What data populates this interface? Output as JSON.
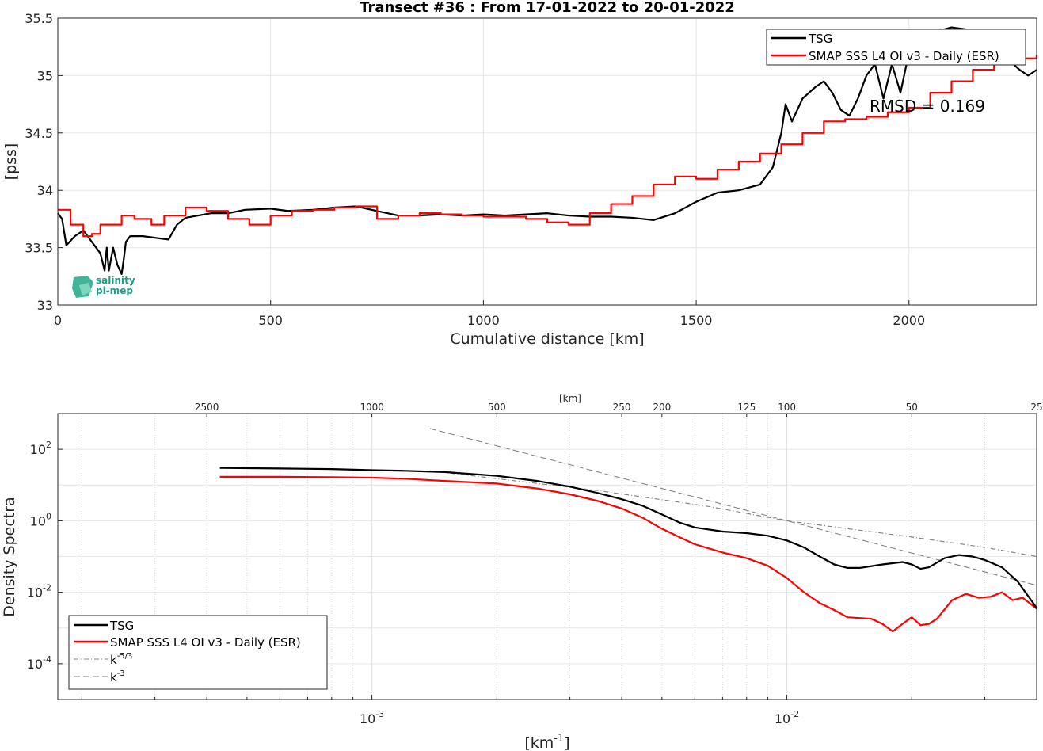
{
  "figure": {
    "title": "Transect #36 : From 17-01-2022 to 20-01-2022",
    "logo_text": [
      "salinity",
      "pi-mep"
    ]
  },
  "chart_data": [
    {
      "type": "line",
      "title": "Transect #36 : From 17-01-2022 to 20-01-2022",
      "xlabel": "Cumulative distance [km]",
      "ylabel": "[pss]",
      "xlim": [
        0,
        2300
      ],
      "ylim": [
        33,
        35.5
      ],
      "xticks": [
        0,
        500,
        1000,
        1500,
        2000
      ],
      "xtick_labels": [
        "0",
        "500",
        "1000",
        "1500",
        "2000"
      ],
      "yticks": [
        33,
        33.5,
        34,
        34.5,
        35,
        35.5
      ],
      "ytick_labels": [
        "33",
        "33.5",
        "34",
        "34.5",
        "35",
        "35.5"
      ],
      "grid": true,
      "legend_position": "top-right",
      "annotation": "RMSD = 0.169",
      "series": [
        {
          "name": "TSG",
          "color": "#000000",
          "x": [
            0,
            10,
            20,
            40,
            60,
            80,
            100,
            110,
            115,
            120,
            130,
            140,
            150,
            155,
            160,
            170,
            200,
            260,
            280,
            300,
            330,
            360,
            400,
            440,
            500,
            540,
            600,
            650,
            700,
            750,
            800,
            850,
            900,
            950,
            1000,
            1050,
            1100,
            1150,
            1200,
            1250,
            1300,
            1350,
            1400,
            1450,
            1500,
            1550,
            1600,
            1650,
            1680,
            1700,
            1710,
            1725,
            1750,
            1780,
            1800,
            1820,
            1840,
            1860,
            1880,
            1900,
            1920,
            1940,
            1960,
            1980,
            2000,
            2020,
            2040,
            2060,
            2080,
            2100,
            2140,
            2180,
            2200,
            2230,
            2260,
            2280,
            2300
          ],
          "y": [
            33.8,
            33.75,
            33.52,
            33.6,
            33.65,
            33.55,
            33.45,
            33.3,
            33.5,
            33.3,
            33.5,
            33.35,
            33.27,
            33.4,
            33.55,
            33.6,
            33.6,
            33.57,
            33.7,
            33.76,
            33.78,
            33.8,
            33.8,
            33.83,
            33.84,
            33.82,
            33.83,
            33.85,
            33.86,
            33.82,
            33.78,
            33.78,
            33.79,
            33.78,
            33.79,
            33.78,
            33.79,
            33.8,
            33.78,
            33.77,
            33.77,
            33.76,
            33.74,
            33.8,
            33.9,
            33.98,
            34.0,
            34.05,
            34.2,
            34.5,
            34.75,
            34.6,
            34.8,
            34.9,
            34.95,
            34.85,
            34.7,
            34.65,
            34.8,
            35.0,
            35.1,
            34.8,
            35.1,
            34.85,
            35.2,
            35.3,
            35.15,
            35.35,
            35.4,
            35.42,
            35.4,
            35.2,
            35.1,
            35.15,
            35.05,
            35.0,
            35.05
          ]
        },
        {
          "name": "SMAP SSS L4 OI v3 - Daily (ESR)",
          "color": "#ff0000",
          "x": [
            0,
            30,
            60,
            80,
            100,
            150,
            180,
            220,
            250,
            300,
            350,
            400,
            450,
            500,
            550,
            600,
            650,
            700,
            750,
            800,
            850,
            900,
            950,
            1000,
            1050,
            1100,
            1150,
            1200,
            1250,
            1300,
            1350,
            1400,
            1450,
            1500,
            1550,
            1600,
            1650,
            1700,
            1750,
            1800,
            1850,
            1900,
            1950,
            2000,
            2050,
            2100,
            2150,
            2200,
            2250,
            2300
          ],
          "y": [
            33.83,
            33.7,
            33.6,
            33.62,
            33.7,
            33.78,
            33.75,
            33.7,
            33.78,
            33.85,
            33.82,
            33.75,
            33.7,
            33.78,
            33.82,
            33.83,
            33.85,
            33.86,
            33.75,
            33.78,
            33.8,
            33.79,
            33.78,
            33.77,
            33.77,
            33.75,
            33.72,
            33.7,
            33.8,
            33.88,
            33.95,
            34.05,
            34.12,
            34.1,
            34.18,
            34.25,
            34.32,
            34.4,
            34.5,
            34.6,
            34.62,
            34.64,
            34.68,
            34.72,
            34.85,
            34.95,
            35.05,
            35.1,
            35.15,
            35.18
          ]
        }
      ]
    },
    {
      "type": "line",
      "xlabel": "[km⁻¹]",
      "ylabel": "Density Spectra",
      "xscale": "log",
      "yscale": "log",
      "xlim": [
        0.000175,
        0.04
      ],
      "ylim": [
        1e-05,
        1000
      ],
      "xticks": [
        0.001,
        0.01
      ],
      "xtick_labels": [
        "10",
        "10"
      ],
      "xtick_exponents": [
        "-3",
        "-2"
      ],
      "yticks": [
        0.0001,
        0.01,
        1,
        100
      ],
      "ytick_labels": [
        "10",
        "10",
        "10",
        "10"
      ],
      "ytick_exponents": [
        "-4",
        "-2",
        "0",
        "2"
      ],
      "top_axis_label": "[km]",
      "top_ticks_km": [
        2500,
        1000,
        500,
        250,
        200,
        125,
        100,
        50,
        25
      ],
      "top_tick_labels": [
        "2500",
        "1000",
        "500",
        "250",
        "200",
        "125",
        "100",
        "50",
        "25"
      ],
      "grid": true,
      "legend_position": "bottom-left",
      "series": [
        {
          "name": "TSG",
          "color": "#000000",
          "x": [
            0.00043,
            0.0006,
            0.0008,
            0.001,
            0.0012,
            0.0015,
            0.002,
            0.0025,
            0.003,
            0.0035,
            0.004,
            0.0045,
            0.005,
            0.0055,
            0.006,
            0.007,
            0.008,
            0.009,
            0.01,
            0.011,
            0.012,
            0.013,
            0.014,
            0.015,
            0.017,
            0.019,
            0.02,
            0.021,
            0.022,
            0.024,
            0.026,
            0.028,
            0.03,
            0.033,
            0.036,
            0.0395,
            0.04
          ],
          "y": [
            30,
            29,
            28,
            26,
            25,
            23,
            18,
            13,
            9,
            6,
            4,
            2.6,
            1.5,
            0.9,
            0.65,
            0.5,
            0.45,
            0.38,
            0.28,
            0.18,
            0.1,
            0.06,
            0.048,
            0.048,
            0.06,
            0.07,
            0.06,
            0.045,
            0.05,
            0.09,
            0.11,
            0.1,
            0.08,
            0.05,
            0.02,
            0.0045,
            0.0035
          ]
        },
        {
          "name": "SMAP SSS L4 OI v3 - Daily (ESR)",
          "color": "#ff0000",
          "x": [
            0.00043,
            0.0006,
            0.0008,
            0.001,
            0.0012,
            0.0015,
            0.002,
            0.0025,
            0.003,
            0.0035,
            0.004,
            0.0045,
            0.005,
            0.0055,
            0.006,
            0.007,
            0.008,
            0.009,
            0.01,
            0.011,
            0.012,
            0.013,
            0.014,
            0.015,
            0.016,
            0.017,
            0.018,
            0.019,
            0.02,
            0.021,
            0.022,
            0.023,
            0.025,
            0.027,
            0.029,
            0.031,
            0.033,
            0.035,
            0.037,
            0.04
          ],
          "y": [
            17,
            17,
            16.5,
            16,
            15,
            13,
            11,
            8,
            5.5,
            3.6,
            2.2,
            1.2,
            0.6,
            0.35,
            0.22,
            0.13,
            0.09,
            0.055,
            0.025,
            0.01,
            0.005,
            0.0032,
            0.002,
            0.0019,
            0.0018,
            0.0013,
            0.0008,
            0.0013,
            0.002,
            0.0012,
            0.0013,
            0.0018,
            0.006,
            0.009,
            0.007,
            0.0075,
            0.01,
            0.006,
            0.007,
            0.0035
          ]
        },
        {
          "name": "k-5/3",
          "color": "#808080",
          "dash": "dashdot",
          "x": [
            0.00138,
            0.0035,
            0.0065,
            0.01,
            0.02,
            0.03,
            0.04
          ],
          "y": [
            25,
            7,
            2.5,
            1.0,
            0.35,
            0.18,
            0.1
          ]
        },
        {
          "name": "k-3",
          "color": "#808080",
          "dash": "dashed",
          "x": [
            0.00138,
            0.0025,
            0.005,
            0.01,
            0.02,
            0.04
          ],
          "y": [
            380,
            64,
            8,
            1.0,
            0.125,
            0.0156
          ]
        }
      ]
    }
  ],
  "legends": {
    "top": [
      {
        "label": "TSG",
        "color": "#000000",
        "dash": "solid"
      },
      {
        "label": "SMAP SSS L4 OI v3 - Daily (ESR)",
        "color": "#ff0000",
        "dash": "solid"
      }
    ],
    "bottom": [
      {
        "label": "TSG",
        "color": "#000000",
        "dash": "solid"
      },
      {
        "label": "SMAP SSS L4 OI v3 - Daily (ESR)",
        "color": "#ff0000",
        "dash": "solid"
      },
      {
        "label": "k",
        "sup": "-5/3",
        "color": "#808080",
        "dash": "dashdot"
      },
      {
        "label": "k",
        "sup": "-3",
        "color": "#808080",
        "dash": "dashed"
      }
    ]
  }
}
